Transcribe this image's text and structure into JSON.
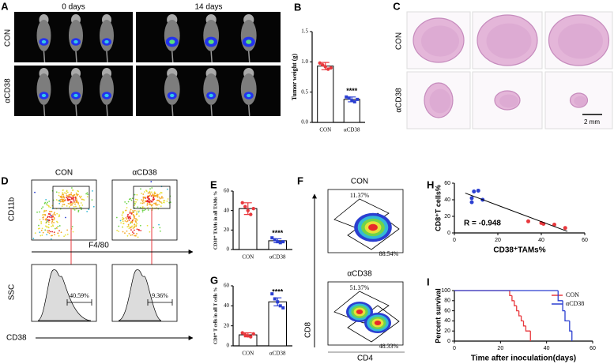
{
  "panels": {
    "A": {
      "letter": "A",
      "timepoints": [
        "0 days",
        "14 days"
      ],
      "groups": [
        "CON",
        "αCD38"
      ]
    },
    "C": {
      "letter": "C",
      "groups": [
        "CON",
        "αCD38"
      ],
      "scale_bar": "2 mm"
    },
    "D": {
      "letter": "D",
      "groups": [
        "CON",
        "αCD38"
      ],
      "y_label_top": "CD11b",
      "x_label_top": "F4/80",
      "y_label_bottom": "SSC",
      "x_label_bottom": "CD38",
      "gate_percent": [
        "40.59%",
        "9.36%"
      ]
    },
    "F": {
      "letter": "F",
      "groups": [
        "CON",
        "αCD38"
      ],
      "gates": [
        [
          "11.37%",
          "88.54%"
        ],
        [
          "51.37%",
          "48.33%"
        ]
      ],
      "y_label": "CD8",
      "x_label": "CD4"
    }
  },
  "chart_data": [
    {
      "letter": "B",
      "type": "bar",
      "ylabel": "Tumor weight (g)",
      "categories": [
        "CON",
        "αCD38"
      ],
      "values": [
        0.93,
        0.38
      ],
      "errors": [
        0.06,
        0.04
      ],
      "points": [
        [
          0.98,
          0.95,
          0.92,
          0.88,
          0.9
        ],
        [
          0.42,
          0.4,
          0.36,
          0.34,
          0.38
        ]
      ],
      "colors": [
        "#e8383d",
        "#2b3fd1"
      ],
      "ylim": [
        0,
        1.5
      ],
      "yticks": [
        {
          "value": 0,
          "label": "0.0"
        },
        {
          "value": 0.5,
          "label": "0.5"
        },
        {
          "value": 1.0,
          "label": "1.0"
        },
        {
          "value": 1.5,
          "label": "1.5"
        }
      ],
      "annotation": "****"
    },
    {
      "letter": "E",
      "type": "bar",
      "ylabel": "CD38⁺ TAMs in all TAMs %",
      "categories": [
        "CON",
        "αCD38"
      ],
      "values": [
        42,
        9
      ],
      "errors": [
        6,
        2
      ],
      "points": [
        [
          48,
          44,
          40,
          36,
          42
        ],
        [
          12,
          10,
          8,
          7,
          8
        ]
      ],
      "colors": [
        "#e8383d",
        "#2b3fd1"
      ],
      "ylim": [
        0,
        60
      ],
      "yticks": [
        0,
        20,
        40,
        60
      ],
      "annotation": "****"
    },
    {
      "letter": "G",
      "type": "bar",
      "ylabel": "CD8⁺ T cells in all T cells %",
      "categories": [
        "CON",
        "αCD38"
      ],
      "values": [
        11,
        44
      ],
      "errors": [
        2,
        4
      ],
      "points": [
        [
          13,
          11,
          10,
          9,
          12
        ],
        [
          52,
          47,
          44,
          40,
          38
        ]
      ],
      "colors": [
        "#e8383d",
        "#2b3fd1"
      ],
      "ylim": [
        0,
        60
      ],
      "yticks": [
        0,
        20,
        40,
        60
      ],
      "annotation": "****"
    },
    {
      "letter": "H",
      "type": "scatter",
      "ylabel": "CD8⁺T cells%",
      "xlabel": "CD38⁺TAMs%",
      "annotation": "R = -0.948",
      "series": [
        {
          "color": "#2b3fd1",
          "x": [
            8,
            8,
            9,
            11,
            13
          ],
          "values": [
            37,
            42,
            50,
            51,
            40
          ]
        },
        {
          "color": "#e8383d",
          "x": [
            34,
            40,
            41,
            46,
            51
          ],
          "values": [
            14,
            12,
            11,
            10,
            6
          ]
        }
      ],
      "xlim": [
        0,
        60
      ],
      "ylim": [
        0,
        60
      ],
      "xticks": [
        0,
        20,
        40,
        60
      ],
      "yticks": [
        0,
        20,
        40,
        60
      ]
    },
    {
      "letter": "I",
      "type": "line",
      "step": true,
      "ylabel": "Percent survival",
      "xlabel": "Time after inoculation(days)",
      "series": [
        {
          "name": "CON",
          "color": "#e8383d",
          "x": [
            0,
            24,
            25,
            26,
            27,
            28,
            29,
            30,
            31,
            33
          ],
          "values": [
            100,
            90,
            80,
            70,
            60,
            50,
            40,
            30,
            20,
            0
          ]
        },
        {
          "name": "αCD38",
          "color": "#2b3fd1",
          "x": [
            0,
            45,
            47,
            48,
            50,
            51
          ],
          "values": [
            100,
            80,
            60,
            40,
            20,
            0
          ]
        }
      ],
      "xlim": [
        0,
        60
      ],
      "ylim": [
        0,
        100
      ],
      "xticks": [
        0,
        20,
        40,
        60
      ],
      "yticks": [
        0,
        20,
        40,
        60,
        80,
        100
      ],
      "legend": "upper right"
    }
  ]
}
